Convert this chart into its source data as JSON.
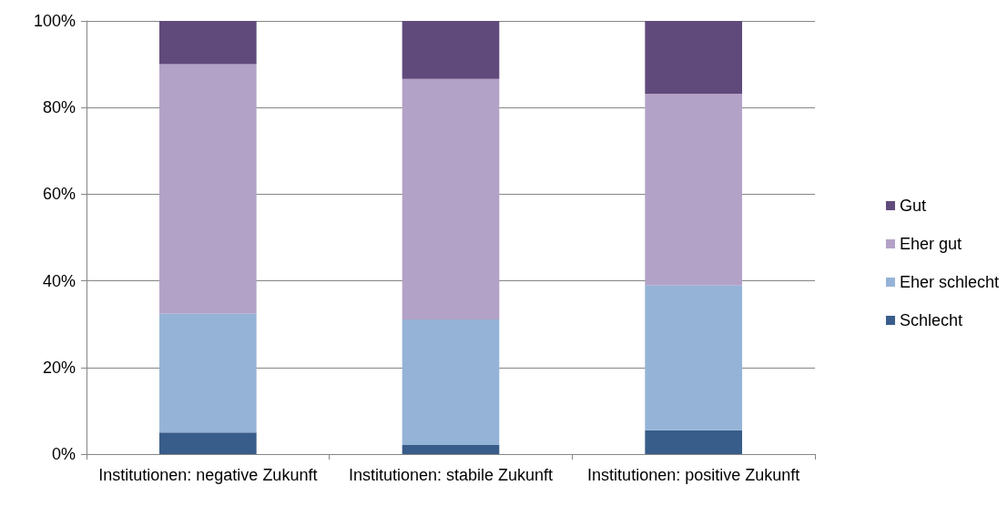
{
  "chart_data": {
    "type": "bar",
    "stacked": true,
    "categories": [
      "Institutionen: negative Zukunft",
      "Institutionen: stabile Zukunft",
      "Institutionen: positive Zukunft"
    ],
    "series": [
      {
        "name": "Schlecht",
        "color": "#385d8a",
        "values": [
          5,
          2.1,
          5.5
        ]
      },
      {
        "name": "Eher schlecht",
        "color": "#95b3d7",
        "values": [
          27.4,
          29,
          33.4
        ]
      },
      {
        "name": "Eher gut",
        "color": "#b3a2c7",
        "values": [
          57.6,
          55.5,
          44.3
        ]
      },
      {
        "name": "Gut",
        "color": "#604a7b",
        "values": [
          10,
          13.4,
          16.8
        ]
      }
    ],
    "ylim": [
      0,
      100
    ],
    "yticks": [
      {
        "value": 0,
        "label": "0%"
      },
      {
        "value": 20,
        "label": "20%"
      },
      {
        "value": 40,
        "label": "40%"
      },
      {
        "value": 60,
        "label": "60%"
      },
      {
        "value": 80,
        "label": "80%"
      },
      {
        "value": 100,
        "label": "100%"
      }
    ],
    "grid": "y",
    "legend": "right"
  }
}
